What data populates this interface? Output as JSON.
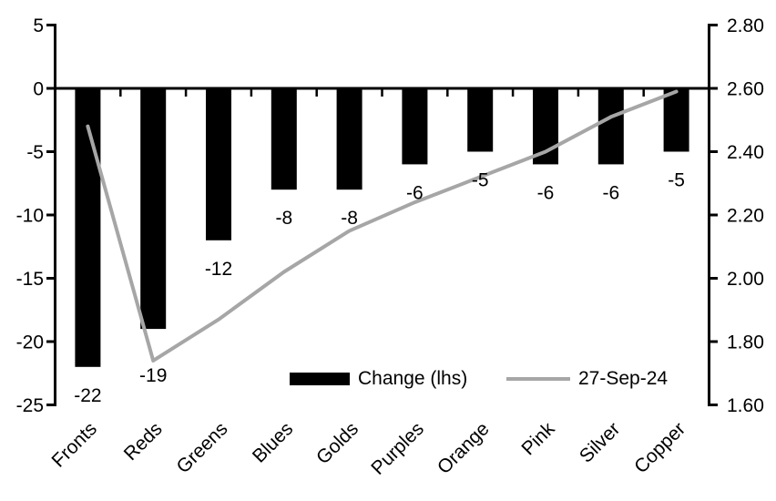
{
  "chart_data": {
    "type": "combo-bar-line",
    "title": "",
    "categories": [
      "Fronts",
      "Reds",
      "Greens",
      "Blues",
      "Golds",
      "Purples",
      "Orange",
      "Pink",
      "Silver",
      "Copper"
    ],
    "series": [
      {
        "name": "Change (lhs)",
        "type": "bar",
        "axis": "left",
        "color": "#000000",
        "values": [
          -22,
          -19,
          -12,
          -8,
          -8,
          -6,
          -5,
          -6,
          -6,
          -5
        ],
        "data_labels": [
          "-22",
          "-19",
          "-12",
          "-8",
          "-8",
          "-6",
          "-5",
          "-6",
          "-6",
          "-5"
        ]
      },
      {
        "name": "27-Sep-24",
        "type": "line",
        "axis": "right",
        "color": "#a6a6a6",
        "values": [
          2.48,
          1.74,
          1.87,
          2.02,
          2.15,
          2.24,
          2.32,
          2.4,
          2.51,
          2.59
        ]
      }
    ],
    "left_axis": {
      "range": [
        -25,
        5
      ],
      "ticks": [
        5,
        0,
        -5,
        -10,
        -15,
        -20,
        -25
      ],
      "tick_labels": [
        "5",
        "0",
        "-5",
        "-10",
        "-15",
        "-20",
        "-25"
      ]
    },
    "right_axis": {
      "range": [
        1.6,
        2.8
      ],
      "ticks": [
        2.8,
        2.6,
        2.4,
        2.2,
        2.0,
        1.8,
        1.6
      ],
      "tick_labels": [
        "2.80",
        "2.60",
        "2.40",
        "2.20",
        "2.00",
        "1.80",
        "1.60"
      ]
    },
    "legend": {
      "position": "bottom-inside",
      "entries": [
        {
          "label": "Change (lhs)",
          "swatch": "bar",
          "color": "#000000"
        },
        {
          "label": "27-Sep-24",
          "swatch": "line",
          "color": "#a6a6a6"
        }
      ]
    },
    "grid": false,
    "plot_background": "#ffffff",
    "axis_color": "#000000"
  }
}
